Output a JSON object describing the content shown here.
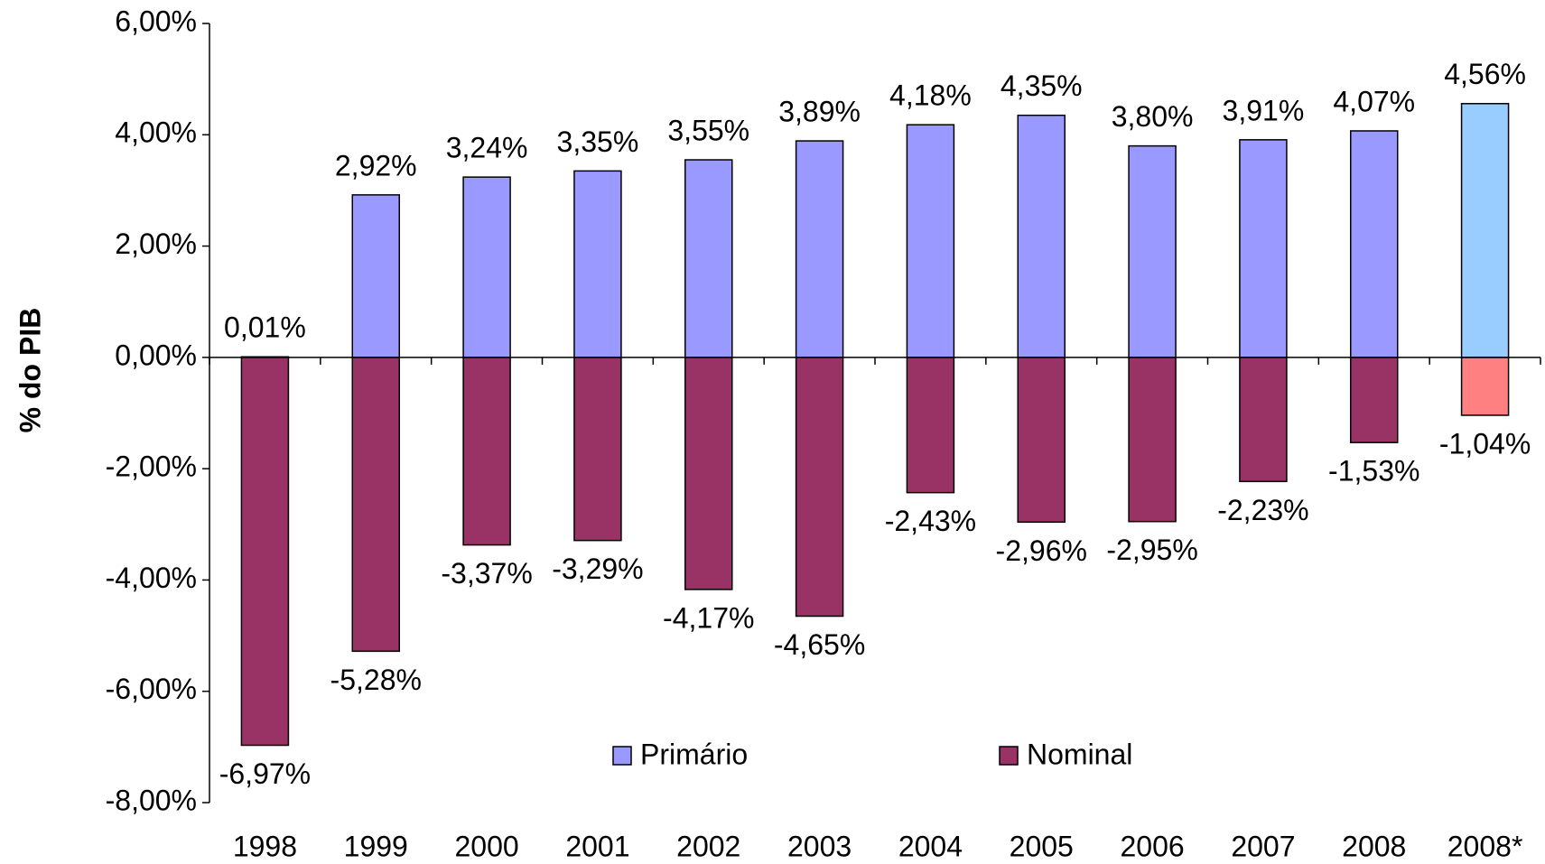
{
  "chart_data": {
    "type": "bar",
    "y_label": "% do PIB",
    "categories": [
      "1998",
      "1999",
      "2000",
      "2001",
      "2002",
      "2003",
      "2004",
      "2005",
      "2006",
      "2007",
      "2008",
      "2008*"
    ],
    "series": [
      {
        "name": "Primário",
        "colors": [
          "#9999ff",
          "#9999ff",
          "#9999ff",
          "#9999ff",
          "#9999ff",
          "#9999ff",
          "#9999ff",
          "#9999ff",
          "#9999ff",
          "#9999ff",
          "#9999ff",
          "#99ccff"
        ],
        "values": [
          0.01,
          2.92,
          3.24,
          3.35,
          3.55,
          3.89,
          4.18,
          4.35,
          3.8,
          3.91,
          4.07,
          4.56
        ],
        "value_labels": [
          "0,01%",
          "2,92%",
          "3,24%",
          "3,35%",
          "3,55%",
          "3,89%",
          "4,18%",
          "4,35%",
          "3,80%",
          "3,91%",
          "4,07%",
          "4,56%"
        ]
      },
      {
        "name": "Nominal",
        "colors": [
          "#993366",
          "#993366",
          "#993366",
          "#993366",
          "#993366",
          "#993366",
          "#993366",
          "#993366",
          "#993366",
          "#993366",
          "#993366",
          "#ff8080"
        ],
        "values": [
          -6.97,
          -5.28,
          -3.37,
          -3.29,
          -4.17,
          -4.65,
          -2.43,
          -2.96,
          -2.95,
          -2.23,
          -1.53,
          -1.04
        ],
        "value_labels": [
          "-6,97%",
          "-5,28%",
          "-3,37%",
          "-3,29%",
          "-4,17%",
          "-4,65%",
          "-2,43%",
          "-2,96%",
          "-2,95%",
          "-2,23%",
          "-1,53%",
          "-1,04%"
        ]
      }
    ],
    "ylim": [
      -8,
      6
    ],
    "yticks": [
      {
        "value": -8,
        "label": "-8,00%"
      },
      {
        "value": -6,
        "label": "-6,00%"
      },
      {
        "value": -4,
        "label": "-4,00%"
      },
      {
        "value": -2,
        "label": "-2,00%"
      },
      {
        "value": 0,
        "label": "0,00%"
      },
      {
        "value": 2,
        "label": "2,00%"
      },
      {
        "value": 4,
        "label": "4,00%"
      },
      {
        "value": 6,
        "label": "6,00%"
      }
    ],
    "grid": false
  }
}
